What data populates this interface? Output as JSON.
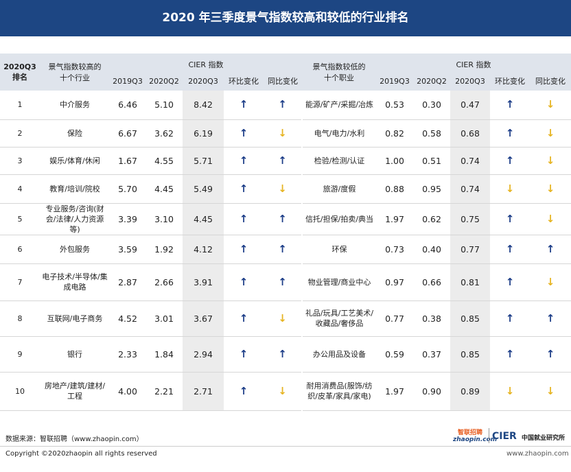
{
  "header": {
    "title": "2020 年三季度景气指数较高和较低的行业排名"
  },
  "table": {
    "rank_header": [
      "2020Q3",
      "排名"
    ],
    "high_header": [
      "景气指数较高的",
      "十个行业"
    ],
    "low_header": [
      "景气指数较低的",
      "十个职业"
    ],
    "index_header": "CIER 指数",
    "sub_headers": [
      "2019Q3",
      "2020Q2",
      "2020Q3",
      "环比变化",
      "同比变化"
    ],
    "arrow_colors": {
      "↑": "#1b3c87",
      "↓": "#e6b422"
    },
    "rows": [
      [
        "1",
        "中介服务",
        "6.46",
        "5.10",
        "8.42",
        "↑",
        "↑",
        "能源/矿产/采掘/冶炼",
        "0.53",
        "0.30",
        "0.47",
        "↑",
        "↓"
      ],
      [
        "2",
        "保险",
        "6.67",
        "3.62",
        "6.19",
        "↑",
        "↓",
        "电气/电力/水利",
        "0.82",
        "0.58",
        "0.68",
        "↑",
        "↓"
      ],
      [
        "3",
        "娱乐/体育/休闲",
        "1.67",
        "4.55",
        "5.71",
        "↑",
        "↑",
        "检验/检测/认证",
        "1.00",
        "0.51",
        "0.74",
        "↑",
        "↓"
      ],
      [
        "4",
        "教育/培训/院校",
        "5.70",
        "4.45",
        "5.49",
        "↑",
        "↓",
        "旅游/度假",
        "0.88",
        "0.95",
        "0.74",
        "↓",
        "↓"
      ],
      [
        "5",
        "专业服务/咨询(财会/法律/人力资源等)",
        "3.39",
        "3.10",
        "4.45",
        "↑",
        "↑",
        "信托/担保/拍卖/典当",
        "1.97",
        "0.62",
        "0.75",
        "↑",
        "↓"
      ],
      [
        "6",
        "外包服务",
        "3.59",
        "1.92",
        "4.12",
        "↑",
        "↑",
        "环保",
        "0.73",
        "0.40",
        "0.77",
        "↑",
        "↑"
      ],
      [
        "7",
        "电子技术/半导体/集成电路",
        "2.87",
        "2.66",
        "3.91",
        "↑",
        "↑",
        "物业管理/商业中心",
        "0.97",
        "0.66",
        "0.81",
        "↑",
        "↓"
      ],
      [
        "8",
        "互联网/电子商务",
        "4.52",
        "3.01",
        "3.67",
        "↑",
        "↓",
        "礼品/玩具/工艺美术/收藏品/奢侈品",
        "0.77",
        "0.38",
        "0.85",
        "↑",
        "↑"
      ],
      [
        "9",
        "银行",
        "2.33",
        "1.84",
        "2.94",
        "↑",
        "↑",
        "办公用品及设备",
        "0.59",
        "0.37",
        "0.85",
        "↑",
        "↑"
      ],
      [
        "10",
        "房地产/建筑/建材/工程",
        "4.00",
        "2.21",
        "2.71",
        "↑",
        "↓",
        "耐用消费品(服饰/纺织/皮革/家具/家电)",
        "1.97",
        "0.90",
        "0.89",
        "↓",
        "↓"
      ]
    ]
  },
  "footer": {
    "source": "数据来源：智联招聘（www.zhaopin.com）",
    "copyright": "Copyright ©2020zhaopin all rights reserved",
    "logo_zhaopin": "智联招聘",
    "logo_zhaopin_url": "zhaopin.com",
    "logo_cier": "CIER",
    "logo_cier_name": "中国就业研究所",
    "logo_url": "www.zhaopin.com"
  }
}
